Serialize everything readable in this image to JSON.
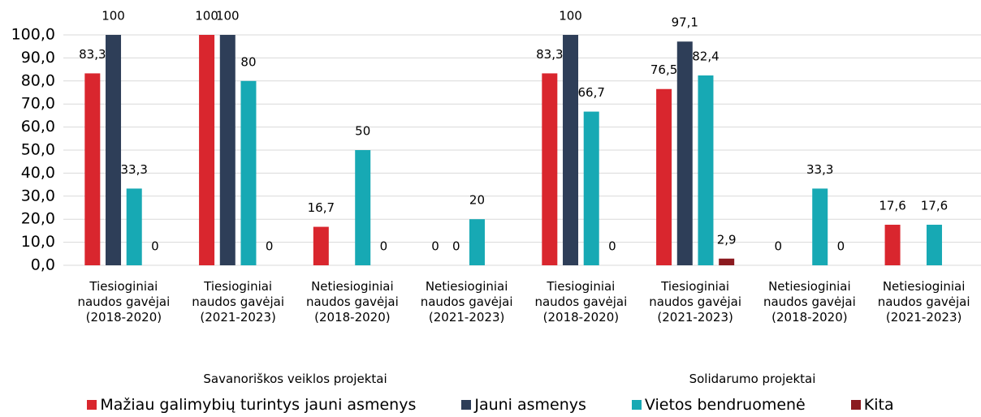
{
  "chart_data": {
    "type": "bar",
    "categories": [
      "Tiesioginiai naudos gavėjai (2018-2020)",
      "Tiesioginiai naudos gavėjai (2021-2023)",
      "Netiesioginiai naudos gavėjai (2018-2020)",
      "Netiesioginiai naudos gavėjai (2021-2023)",
      "Tiesioginiai naudos gavėjai (2018-2020)",
      "Tiesioginiai naudos gavėjai (2021-2023)",
      "Netiesioginiai naudos gavėjai (2018-2020)",
      "Netiesioginiai naudos gavėjai (2021-2023)"
    ],
    "groups": [
      {
        "name": "Savanoriškos veiklos projektai",
        "count": 4
      },
      {
        "name": "Solidarumo projektai",
        "count": 4
      }
    ],
    "series": [
      {
        "name": "Mažiau galimybių turintys jauni asmenys",
        "color": "#d9262e",
        "values": [
          83.3,
          100,
          16.7,
          0,
          83.3,
          76.5,
          0,
          17.6
        ],
        "value_labels": [
          "83,3",
          "100",
          "16,7",
          "0",
          "83,3",
          "76,5",
          "0",
          "17,6"
        ]
      },
      {
        "name": "Jauni asmenys",
        "color": "#2e3e58",
        "values": [
          100,
          100,
          null,
          0,
          100,
          97.1,
          null,
          null
        ],
        "value_labels": [
          "100",
          "100",
          null,
          "0",
          "100",
          "97,1",
          null,
          null
        ]
      },
      {
        "name": "Vietos bendruomenė",
        "color": "#17a9b4",
        "values": [
          33.3,
          80,
          50,
          20,
          66.7,
          82.4,
          33.3,
          17.6
        ],
        "value_labels": [
          "33,3",
          "80",
          "50",
          "20",
          "66,7",
          "82,4",
          "33,3",
          "17,6"
        ]
      },
      {
        "name": "Kita",
        "color": "#8b1a1f",
        "values": [
          0,
          0,
          0,
          null,
          0,
          2.9,
          0,
          null
        ],
        "value_labels": [
          "0",
          "0",
          "0",
          null,
          "0",
          "2,9",
          "0",
          null
        ]
      }
    ],
    "ylim": [
      0,
      100
    ],
    "yticks": [
      {
        "value": 0,
        "label": "0,0"
      },
      {
        "value": 10,
        "label": "10,0"
      },
      {
        "value": 20,
        "label": "20,0"
      },
      {
        "value": 30,
        "label": "30,0"
      },
      {
        "value": 40,
        "label": "40,0"
      },
      {
        "value": 50,
        "label": "50,0"
      },
      {
        "value": 60,
        "label": "60,0"
      },
      {
        "value": 70,
        "label": "70,0"
      },
      {
        "value": 80,
        "label": "80,0"
      },
      {
        "value": 90,
        "label": "90,0"
      },
      {
        "value": 100,
        "label": "100,0"
      }
    ],
    "grid": true,
    "legend": "bottom"
  }
}
